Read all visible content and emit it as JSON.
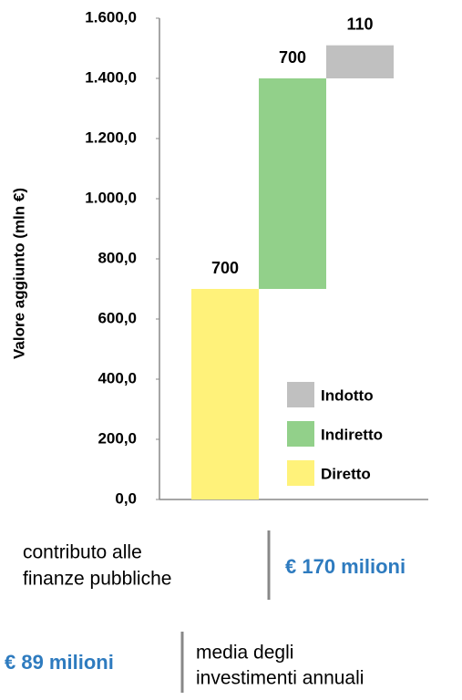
{
  "chart_data": {
    "type": "waterfall",
    "ylabel": "Valore aggiunto (mln €)",
    "series": [
      {
        "name": "Diretto",
        "color": "#fff27a",
        "values": [
          700
        ]
      },
      {
        "name": "Indiretto",
        "color": "#92d08a",
        "values": [
          700
        ]
      },
      {
        "name": "Indotto",
        "color": "#c0c0c0",
        "values": [
          110
        ]
      }
    ],
    "ylim": [
      0,
      1600
    ],
    "yticks": [
      {
        "value": 0,
        "label": "0,0"
      },
      {
        "value": 200,
        "label": "200,0"
      },
      {
        "value": 400,
        "label": "400,0"
      },
      {
        "value": 600,
        "label": "600,0"
      },
      {
        "value": 800,
        "label": "800,0"
      },
      {
        "value": 1000,
        "label": "1.000,0"
      },
      {
        "value": 1200,
        "label": "1.200,0"
      },
      {
        "value": 1400,
        "label": "1.400,0"
      },
      {
        "value": 1600,
        "label": "1.600,0"
      }
    ],
    "legend": "lower right"
  },
  "notes": [
    {
      "text": [
        "contributo alle",
        "finanze pubbliche"
      ],
      "amount": "€ 170 milioni"
    },
    {
      "amount": "€ 89 milioni",
      "text": [
        "media degli",
        "investimenti annuali"
      ]
    }
  ]
}
